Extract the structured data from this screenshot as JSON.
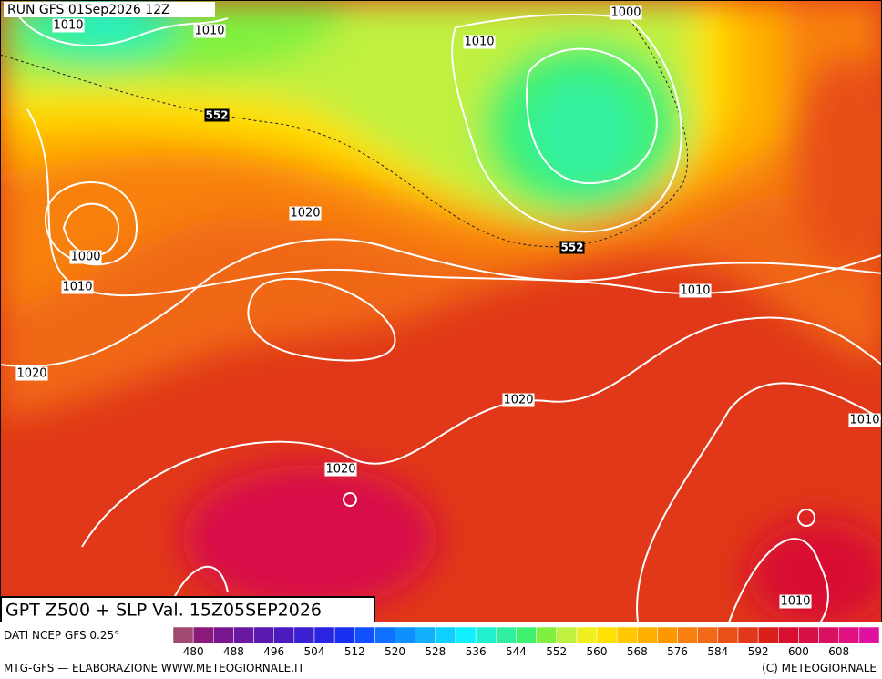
{
  "header": {
    "run": "RUN GFS 01Sep2026 12Z"
  },
  "map": {
    "labels": [
      "1010",
      "1010",
      "1010",
      "1000",
      "552",
      "1020",
      "1000",
      "1010",
      "552",
      "1010",
      "1020",
      "1020",
      "1010",
      "1020",
      "1010"
    ]
  },
  "footer": {
    "title": "GPT Z500 + SLP Val. 15Z05SEP2026",
    "source": "DATI NCEP GFS 0.25°",
    "credit": "MTG-GFS — ELABORAZIONE WWW.METEOGIORNALE.IT",
    "copyright": "(C) METEOGIORNALE"
  },
  "colorbar": {
    "range": [
      476,
      616
    ],
    "ticks": [
      480,
      488,
      496,
      504,
      512,
      520,
      528,
      536,
      544,
      552,
      560,
      568,
      576,
      584,
      592,
      600,
      608
    ],
    "colors": [
      "#a04a70",
      "#8c1a7a",
      "#7a1690",
      "#6a18a0",
      "#5a1ab0",
      "#4a1cc0",
      "#3a20d0",
      "#2a24e0",
      "#1a30f0",
      "#1050ff",
      "#1070ff",
      "#1090ff",
      "#10b0ff",
      "#10d0ff",
      "#10f0ff",
      "#20f0d0",
      "#30f0a0",
      "#40f070",
      "#80f040",
      "#c0f040",
      "#f0f020",
      "#ffe000",
      "#ffc800",
      "#ffb000",
      "#ff9800",
      "#f88010",
      "#f06818",
      "#e85018",
      "#e03818",
      "#d82018",
      "#d81030",
      "#d81048",
      "#d81060",
      "#e01080",
      "#e010a0"
    ]
  }
}
